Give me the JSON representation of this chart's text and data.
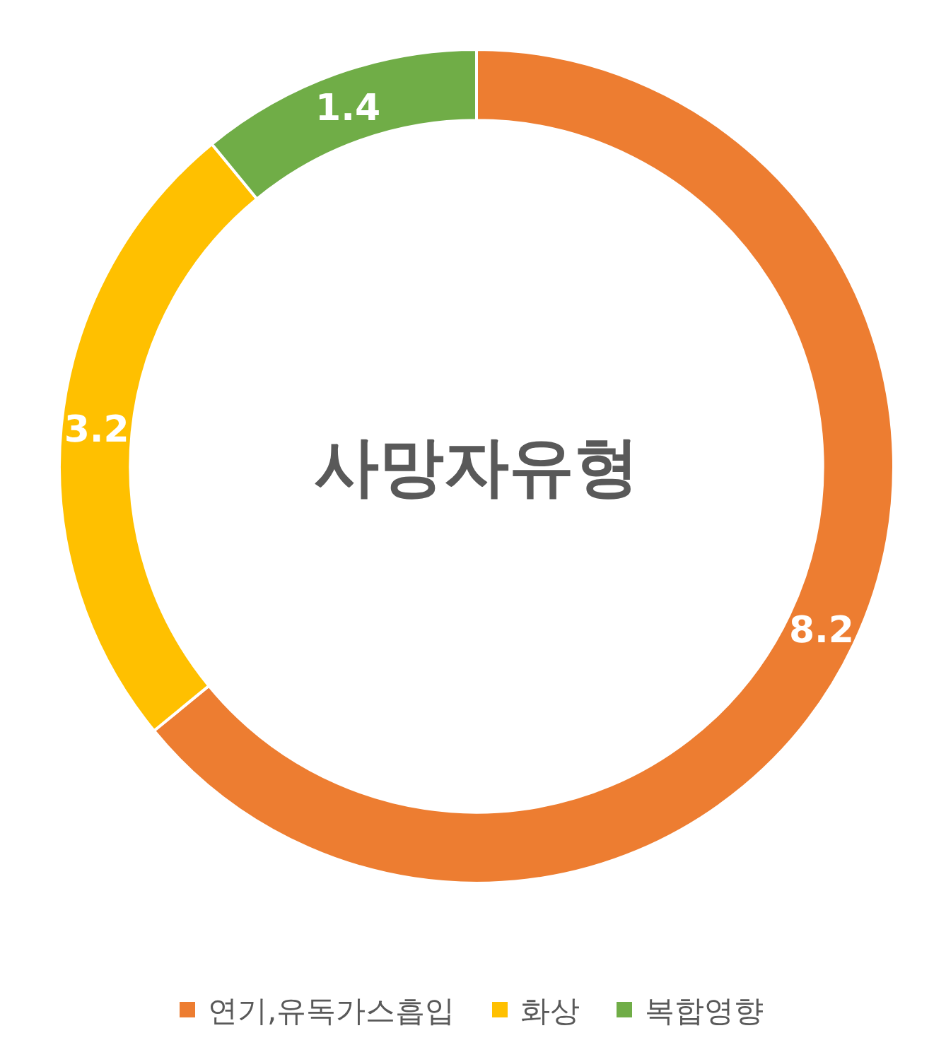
{
  "chart_data": {
    "type": "donut",
    "title": "사망자유형",
    "categories": [
      "연기,유독가스흡입",
      "화상",
      "복합영향"
    ],
    "values": [
      8.2,
      3.2,
      1.4
    ],
    "colors": [
      "#ed7d31",
      "#ffc000",
      "#70ad47"
    ],
    "data_labels": true,
    "legend": "bottom"
  }
}
